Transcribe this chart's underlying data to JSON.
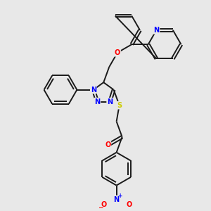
{
  "bg_color": "#e8e8e8",
  "bond_color": "#1a1a1a",
  "n_color": "#0000ff",
  "o_color": "#ff0000",
  "s_color": "#cccc00",
  "lw": 1.4,
  "dbo": 0.07,
  "fs": 7.0,
  "figsize": [
    3.0,
    3.0
  ],
  "dpi": 100,
  "xlim": [
    0,
    10
  ],
  "ylim": [
    0,
    10
  ]
}
